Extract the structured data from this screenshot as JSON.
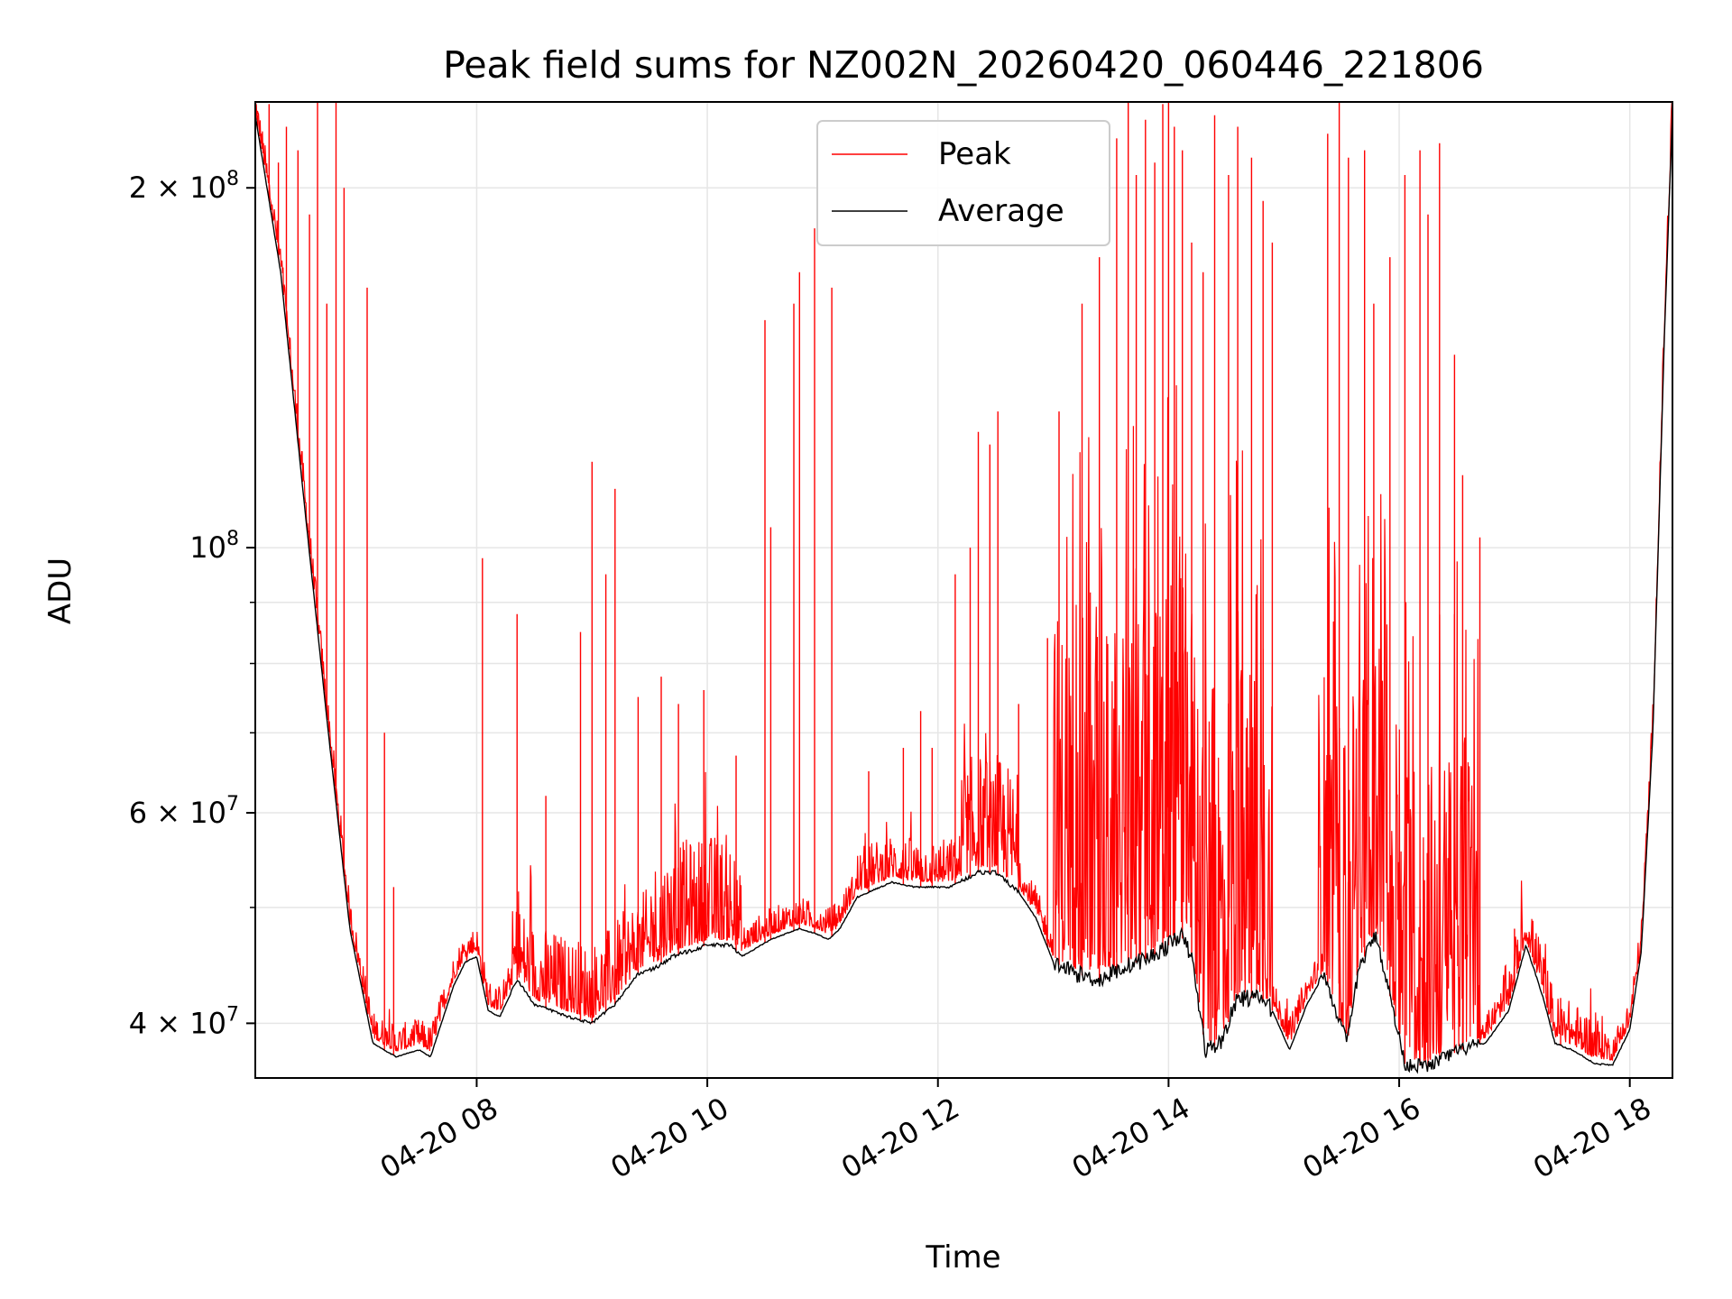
{
  "chart_data": {
    "type": "line",
    "title": "Peak field sums for NZ002N_20260420_060446_221806",
    "xlabel": "Time",
    "ylabel": "ADU",
    "yscale": "log",
    "xlim": [
      6.08,
      18.37
    ],
    "ylim": [
      36000000,
      236000000
    ],
    "grid": true,
    "legend_position": "top-center",
    "x_ticks": [
      {
        "value": 8,
        "label": "04-20 08"
      },
      {
        "value": 10,
        "label": "04-20 10"
      },
      {
        "value": 12,
        "label": "04-20 12"
      },
      {
        "value": 14,
        "label": "04-20 14"
      },
      {
        "value": 16,
        "label": "04-20 16"
      },
      {
        "value": 18,
        "label": "04-20 18"
      }
    ],
    "y_ticks": [
      {
        "value": 40000000,
        "mant": "4",
        "exp": "7"
      },
      {
        "value": 60000000,
        "mant": "6",
        "exp": "7"
      },
      {
        "value": 100000000,
        "mant": "10",
        "exp": "8"
      },
      {
        "value": 200000000,
        "mant": "2",
        "exp": "8"
      }
    ],
    "y_minor_ticks": [
      50000000,
      70000000,
      80000000,
      90000000
    ],
    "series": [
      {
        "name": "Peak",
        "color": "#ff0000",
        "spikes": [
          {
            "t": 6.1,
            "v": 230000000
          },
          {
            "t": 6.2,
            "v": 235000000
          },
          {
            "t": 6.28,
            "v": 210000000
          },
          {
            "t": 6.35,
            "v": 225000000
          },
          {
            "t": 6.45,
            "v": 215000000
          },
          {
            "t": 6.55,
            "v": 190000000
          },
          {
            "t": 6.62,
            "v": 240000000
          },
          {
            "t": 6.7,
            "v": 160000000
          },
          {
            "t": 6.78,
            "v": 240000000
          },
          {
            "t": 6.85,
            "v": 200000000
          },
          {
            "t": 7.05,
            "v": 165000000
          },
          {
            "t": 7.2,
            "v": 70000000
          },
          {
            "t": 7.28,
            "v": 52000000
          },
          {
            "t": 8.05,
            "v": 98000000
          },
          {
            "t": 8.35,
            "v": 88000000
          },
          {
            "t": 8.6,
            "v": 62000000
          },
          {
            "t": 8.9,
            "v": 85000000
          },
          {
            "t": 9.0,
            "v": 118000000
          },
          {
            "t": 9.12,
            "v": 95000000
          },
          {
            "t": 9.2,
            "v": 112000000
          },
          {
            "t": 9.4,
            "v": 75000000
          },
          {
            "t": 9.6,
            "v": 78000000
          },
          {
            "t": 9.75,
            "v": 74000000
          },
          {
            "t": 9.97,
            "v": 76000000
          },
          {
            "t": 10.25,
            "v": 67000000
          },
          {
            "t": 10.5,
            "v": 155000000
          },
          {
            "t": 10.55,
            "v": 104000000
          },
          {
            "t": 10.75,
            "v": 160000000
          },
          {
            "t": 10.8,
            "v": 170000000
          },
          {
            "t": 10.93,
            "v": 185000000
          },
          {
            "t": 11.08,
            "v": 165000000
          },
          {
            "t": 11.4,
            "v": 65000000
          },
          {
            "t": 11.7,
            "v": 68000000
          },
          {
            "t": 11.85,
            "v": 73000000
          },
          {
            "t": 11.95,
            "v": 68000000
          },
          {
            "t": 12.15,
            "v": 95000000
          },
          {
            "t": 12.28,
            "v": 100000000
          },
          {
            "t": 12.35,
            "v": 125000000
          },
          {
            "t": 12.45,
            "v": 122000000
          },
          {
            "t": 12.52,
            "v": 130000000
          },
          {
            "t": 12.7,
            "v": 74000000
          },
          {
            "t": 12.95,
            "v": 84000000
          },
          {
            "t": 13.05,
            "v": 130000000
          },
          {
            "t": 13.25,
            "v": 160000000
          },
          {
            "t": 13.4,
            "v": 175000000
          },
          {
            "t": 13.55,
            "v": 220000000
          },
          {
            "t": 13.65,
            "v": 240000000
          },
          {
            "t": 13.72,
            "v": 205000000
          },
          {
            "t": 13.8,
            "v": 228000000
          },
          {
            "t": 13.88,
            "v": 210000000
          },
          {
            "t": 13.95,
            "v": 235000000
          },
          {
            "t": 14.0,
            "v": 238000000
          },
          {
            "t": 14.05,
            "v": 225000000
          },
          {
            "t": 14.12,
            "v": 215000000
          },
          {
            "t": 14.2,
            "v": 180000000
          },
          {
            "t": 14.3,
            "v": 170000000
          },
          {
            "t": 14.4,
            "v": 230000000
          },
          {
            "t": 14.52,
            "v": 205000000
          },
          {
            "t": 14.6,
            "v": 225000000
          },
          {
            "t": 14.72,
            "v": 212000000
          },
          {
            "t": 14.82,
            "v": 195000000
          },
          {
            "t": 14.9,
            "v": 180000000
          },
          {
            "t": 15.38,
            "v": 222000000
          },
          {
            "t": 15.48,
            "v": 238000000
          },
          {
            "t": 15.56,
            "v": 212000000
          },
          {
            "t": 15.7,
            "v": 215000000
          },
          {
            "t": 15.78,
            "v": 160000000
          },
          {
            "t": 15.92,
            "v": 175000000
          },
          {
            "t": 16.05,
            "v": 205000000
          },
          {
            "t": 16.18,
            "v": 215000000
          },
          {
            "t": 16.25,
            "v": 190000000
          },
          {
            "t": 16.35,
            "v": 218000000
          },
          {
            "t": 16.48,
            "v": 145000000
          },
          {
            "t": 16.55,
            "v": 115000000
          },
          {
            "t": 16.7,
            "v": 102000000
          },
          {
            "t": 17.0,
            "v": 48000000
          },
          {
            "t": 17.4,
            "v": 42000000
          }
        ]
      },
      {
        "name": "Average",
        "color": "#000000",
        "points": [
          [
            6.08,
            230000000
          ],
          [
            6.3,
            170000000
          ],
          [
            6.5,
            110000000
          ],
          [
            6.7,
            72000000
          ],
          [
            6.9,
            48000000
          ],
          [
            7.1,
            38500000
          ],
          [
            7.3,
            37500000
          ],
          [
            7.5,
            38000000
          ],
          [
            7.6,
            37500000
          ],
          [
            7.8,
            43000000
          ],
          [
            7.9,
            45000000
          ],
          [
            8.0,
            45500000
          ],
          [
            8.1,
            41000000
          ],
          [
            8.2,
            40500000
          ],
          [
            8.35,
            43500000
          ],
          [
            8.5,
            41500000
          ],
          [
            8.8,
            40500000
          ],
          [
            9.0,
            40000000
          ],
          [
            9.2,
            41500000
          ],
          [
            9.4,
            44000000
          ],
          [
            9.55,
            44500000
          ],
          [
            9.7,
            45500000
          ],
          [
            10.0,
            46500000
          ],
          [
            10.2,
            46500000
          ],
          [
            10.3,
            45500000
          ],
          [
            10.55,
            47000000
          ],
          [
            10.8,
            48000000
          ],
          [
            10.95,
            47500000
          ],
          [
            11.05,
            47000000
          ],
          [
            11.15,
            48000000
          ],
          [
            11.3,
            51000000
          ],
          [
            11.6,
            52500000
          ],
          [
            11.8,
            52000000
          ],
          [
            12.1,
            52000000
          ],
          [
            12.35,
            53500000
          ],
          [
            12.5,
            53500000
          ],
          [
            12.7,
            51500000
          ],
          [
            12.85,
            49000000
          ],
          [
            13.0,
            45000000
          ],
          [
            13.2,
            44000000
          ],
          [
            13.4,
            43500000
          ],
          [
            13.6,
            44500000
          ],
          [
            13.85,
            45500000
          ],
          [
            14.0,
            46500000
          ],
          [
            14.1,
            47500000
          ],
          [
            14.2,
            45500000
          ],
          [
            14.32,
            38000000
          ],
          [
            14.45,
            38500000
          ],
          [
            14.6,
            42000000
          ],
          [
            14.8,
            42000000
          ],
          [
            14.9,
            41000000
          ],
          [
            15.05,
            38000000
          ],
          [
            15.2,
            41500000
          ],
          [
            15.35,
            44000000
          ],
          [
            15.45,
            41000000
          ],
          [
            15.55,
            38500000
          ],
          [
            15.65,
            44500000
          ],
          [
            15.8,
            47500000
          ],
          [
            15.9,
            43000000
          ],
          [
            16.05,
            37000000
          ],
          [
            16.25,
            36800000
          ],
          [
            16.4,
            37500000
          ],
          [
            16.6,
            38200000
          ],
          [
            16.75,
            38500000
          ],
          [
            16.95,
            41000000
          ],
          [
            17.1,
            46500000
          ],
          [
            17.25,
            42000000
          ],
          [
            17.35,
            38500000
          ],
          [
            17.5,
            38000000
          ],
          [
            17.7,
            37000000
          ],
          [
            17.85,
            36900000
          ],
          [
            18.0,
            39500000
          ],
          [
            18.1,
            46000000
          ],
          [
            18.2,
            70000000
          ],
          [
            18.3,
            150000000
          ],
          [
            18.37,
            232000000
          ]
        ]
      }
    ]
  }
}
